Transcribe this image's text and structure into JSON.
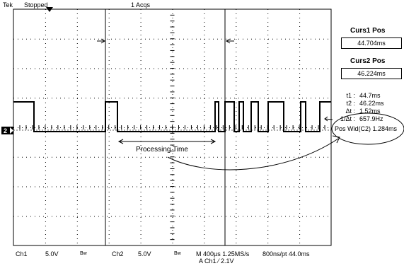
{
  "status": {
    "brand": "Tek",
    "run_state": "Stopped",
    "acq": "1 Acqs"
  },
  "ch_marker": "2",
  "cursor_menu": {
    "curs1_title": "Curs1 Pos",
    "curs1_value": "44.704ms",
    "curs2_title": "Curs2 Pos",
    "curs2_value": "46.224ms"
  },
  "readout": [
    {
      "key": "t1 :",
      "value": "44.7ms"
    },
    {
      "key": "t2 :",
      "value": "46.22ms"
    },
    {
      "key": "Δt :",
      "value": "1.52ms"
    },
    {
      "key": "1/Δt :",
      "value": "657.9Hz"
    }
  ],
  "measurement": "Pos Wid(C2)  1.284ms",
  "annotation": "Processing Time",
  "footer": {
    "ch1": "Ch1",
    "ch1_scale": "5.0V",
    "bw1": "Bw",
    "ch2": "Ch2",
    "ch2_scale": "5.0V",
    "bw2": "Bw",
    "timebase": "M 400µs 1.25MS/s",
    "record": "800ns/pt 44.0ms",
    "trigger": "A  Ch1  ⁄  2.1V"
  },
  "colors": {
    "trace": "#000000",
    "background": "#ffffff",
    "graticule": "#000000"
  }
}
